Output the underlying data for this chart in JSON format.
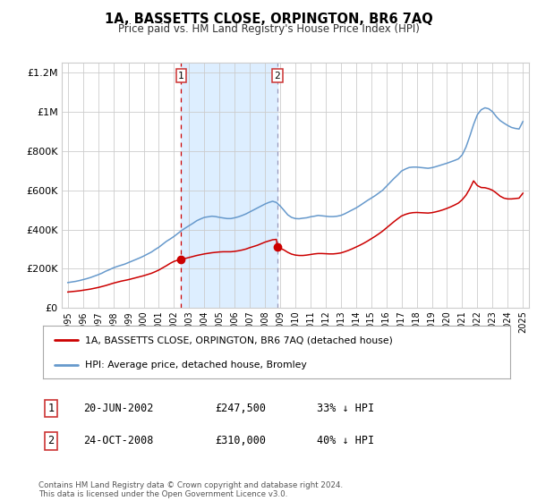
{
  "title": "1A, BASSETTS CLOSE, ORPINGTON, BR6 7AQ",
  "subtitle": "Price paid vs. HM Land Registry's House Price Index (HPI)",
  "legend_label_red": "1A, BASSETTS CLOSE, ORPINGTON, BR6 7AQ (detached house)",
  "legend_label_blue": "HPI: Average price, detached house, Bromley",
  "transaction1_label": "20-JUN-2002",
  "transaction1_price": "£247,500",
  "transaction1_hpi": "33% ↓ HPI",
  "transaction1_date_num": 2002.47,
  "transaction1_price_val": 247500,
  "transaction2_label": "24-OCT-2008",
  "transaction2_price": "£310,000",
  "transaction2_hpi": "40% ↓ HPI",
  "transaction2_date_num": 2008.81,
  "transaction2_price_val": 310000,
  "footer": "Contains HM Land Registry data © Crown copyright and database right 2024.\nThis data is licensed under the Open Government Licence v3.0.",
  "shaded_color": "#ddeeff",
  "red_color": "#cc0000",
  "blue_color": "#6699cc",
  "grid_color": "#cccccc",
  "background_color": "#ffffff",
  "ylim": [
    0,
    1250000
  ],
  "xlim_start": 1994.6,
  "xlim_end": 2025.4,
  "yticks": [
    0,
    200000,
    400000,
    600000,
    800000,
    1000000,
    1200000
  ],
  "ytick_labels": [
    "£0",
    "£200K",
    "£400K",
    "£600K",
    "£800K",
    "£1M",
    "£1.2M"
  ],
  "years_hpi": [
    1995.0,
    1995.25,
    1995.5,
    1995.75,
    1996.0,
    1996.25,
    1996.5,
    1996.75,
    1997.0,
    1997.25,
    1997.5,
    1997.75,
    1998.0,
    1998.25,
    1998.5,
    1998.75,
    1999.0,
    1999.25,
    1999.5,
    1999.75,
    2000.0,
    2000.25,
    2000.5,
    2000.75,
    2001.0,
    2001.25,
    2001.5,
    2001.75,
    2002.0,
    2002.25,
    2002.5,
    2002.75,
    2003.0,
    2003.25,
    2003.5,
    2003.75,
    2004.0,
    2004.25,
    2004.5,
    2004.75,
    2005.0,
    2005.25,
    2005.5,
    2005.75,
    2006.0,
    2006.25,
    2006.5,
    2006.75,
    2007.0,
    2007.25,
    2007.5,
    2007.75,
    2008.0,
    2008.25,
    2008.5,
    2008.75,
    2009.0,
    2009.25,
    2009.5,
    2009.75,
    2010.0,
    2010.25,
    2010.5,
    2010.75,
    2011.0,
    2011.25,
    2011.5,
    2011.75,
    2012.0,
    2012.25,
    2012.5,
    2012.75,
    2013.0,
    2013.25,
    2013.5,
    2013.75,
    2014.0,
    2014.25,
    2014.5,
    2014.75,
    2015.0,
    2015.25,
    2015.5,
    2015.75,
    2016.0,
    2016.25,
    2016.5,
    2016.75,
    2017.0,
    2017.25,
    2017.5,
    2017.75,
    2018.0,
    2018.25,
    2018.5,
    2018.75,
    2019.0,
    2019.25,
    2019.5,
    2019.75,
    2020.0,
    2020.25,
    2020.5,
    2020.75,
    2021.0,
    2021.25,
    2021.5,
    2021.75,
    2022.0,
    2022.25,
    2022.5,
    2022.75,
    2023.0,
    2023.25,
    2023.5,
    2023.75,
    2024.0,
    2024.25,
    2024.5,
    2024.75,
    2025.0
  ],
  "values_hpi": [
    130000,
    133000,
    136000,
    140000,
    145000,
    150000,
    156000,
    163000,
    170000,
    178000,
    188000,
    196000,
    205000,
    212000,
    218000,
    224000,
    232000,
    240000,
    248000,
    256000,
    265000,
    275000,
    285000,
    298000,
    310000,
    325000,
    340000,
    352000,
    365000,
    380000,
    395000,
    408000,
    420000,
    432000,
    445000,
    454000,
    462000,
    465000,
    468000,
    466000,
    462000,
    459000,
    456000,
    456000,
    460000,
    465000,
    472000,
    480000,
    490000,
    500000,
    510000,
    520000,
    530000,
    538000,
    544000,
    538000,
    520000,
    498000,
    475000,
    462000,
    456000,
    455000,
    458000,
    460000,
    465000,
    468000,
    472000,
    470000,
    468000,
    466000,
    466000,
    468000,
    472000,
    480000,
    490000,
    500000,
    510000,
    522000,
    535000,
    548000,
    560000,
    572000,
    586000,
    600000,
    620000,
    640000,
    660000,
    678000,
    698000,
    708000,
    716000,
    718000,
    718000,
    716000,
    714000,
    712000,
    715000,
    720000,
    726000,
    732000,
    738000,
    745000,
    752000,
    760000,
    780000,
    820000,
    875000,
    935000,
    985000,
    1010000,
    1020000,
    1015000,
    1000000,
    975000,
    955000,
    942000,
    930000,
    920000,
    915000,
    912000,
    950000
  ],
  "years_red": [
    1995.0,
    1995.25,
    1995.5,
    1995.75,
    1996.0,
    1996.25,
    1996.5,
    1996.75,
    1997.0,
    1997.25,
    1997.5,
    1997.75,
    1998.0,
    1998.25,
    1998.5,
    1998.75,
    1999.0,
    1999.25,
    1999.5,
    1999.75,
    2000.0,
    2000.25,
    2000.5,
    2000.75,
    2001.0,
    2001.25,
    2001.5,
    2001.75,
    2002.0,
    2002.25,
    2002.47,
    2002.5,
    2002.75,
    2003.0,
    2003.25,
    2003.5,
    2003.75,
    2004.0,
    2004.25,
    2004.5,
    2004.75,
    2005.0,
    2005.25,
    2005.5,
    2005.75,
    2006.0,
    2006.25,
    2006.5,
    2006.75,
    2007.0,
    2007.25,
    2007.5,
    2007.75,
    2008.0,
    2008.25,
    2008.5,
    2008.75,
    2008.81,
    2009.0,
    2009.25,
    2009.5,
    2009.75,
    2010.0,
    2010.25,
    2010.5,
    2010.75,
    2011.0,
    2011.25,
    2011.5,
    2011.75,
    2012.0,
    2012.25,
    2012.5,
    2012.75,
    2013.0,
    2013.25,
    2013.5,
    2013.75,
    2014.0,
    2014.25,
    2014.5,
    2014.75,
    2015.0,
    2015.25,
    2015.5,
    2015.75,
    2016.0,
    2016.25,
    2016.5,
    2016.75,
    2017.0,
    2017.25,
    2017.5,
    2017.75,
    2018.0,
    2018.25,
    2018.5,
    2018.75,
    2019.0,
    2019.25,
    2019.5,
    2019.75,
    2020.0,
    2020.25,
    2020.5,
    2020.75,
    2021.0,
    2021.25,
    2021.5,
    2021.75,
    2022.0,
    2022.25,
    2022.5,
    2022.75,
    2023.0,
    2023.25,
    2023.5,
    2023.75,
    2024.0,
    2024.25,
    2024.5,
    2024.75,
    2025.0
  ],
  "values_red": [
    82000,
    84000,
    86000,
    88000,
    91000,
    94000,
    97000,
    101000,
    105000,
    110000,
    115000,
    121000,
    127000,
    132000,
    137000,
    141000,
    145000,
    150000,
    155000,
    160000,
    165000,
    171000,
    177000,
    185000,
    194000,
    205000,
    216000,
    228000,
    238000,
    244000,
    247500,
    249000,
    253000,
    258000,
    263000,
    268000,
    272000,
    276000,
    279000,
    282000,
    284000,
    286000,
    287000,
    287000,
    287000,
    289000,
    292000,
    296000,
    301000,
    308000,
    314000,
    320000,
    328000,
    336000,
    342000,
    348000,
    350000,
    310000,
    305000,
    296000,
    284000,
    275000,
    270000,
    268000,
    268000,
    270000,
    273000,
    276000,
    278000,
    278000,
    277000,
    276000,
    276000,
    278000,
    281000,
    287000,
    294000,
    302000,
    311000,
    320000,
    330000,
    341000,
    353000,
    365000,
    378000,
    392000,
    408000,
    424000,
    440000,
    455000,
    469000,
    477000,
    483000,
    486000,
    487000,
    486000,
    485000,
    484000,
    486000,
    490000,
    495000,
    501000,
    508000,
    516000,
    525000,
    535000,
    552000,
    575000,
    608000,
    648000,
    624000,
    614000,
    613000,
    608000,
    600000,
    586000,
    570000,
    560000,
    556000,
    556000,
    558000,
    560000,
    585000
  ]
}
